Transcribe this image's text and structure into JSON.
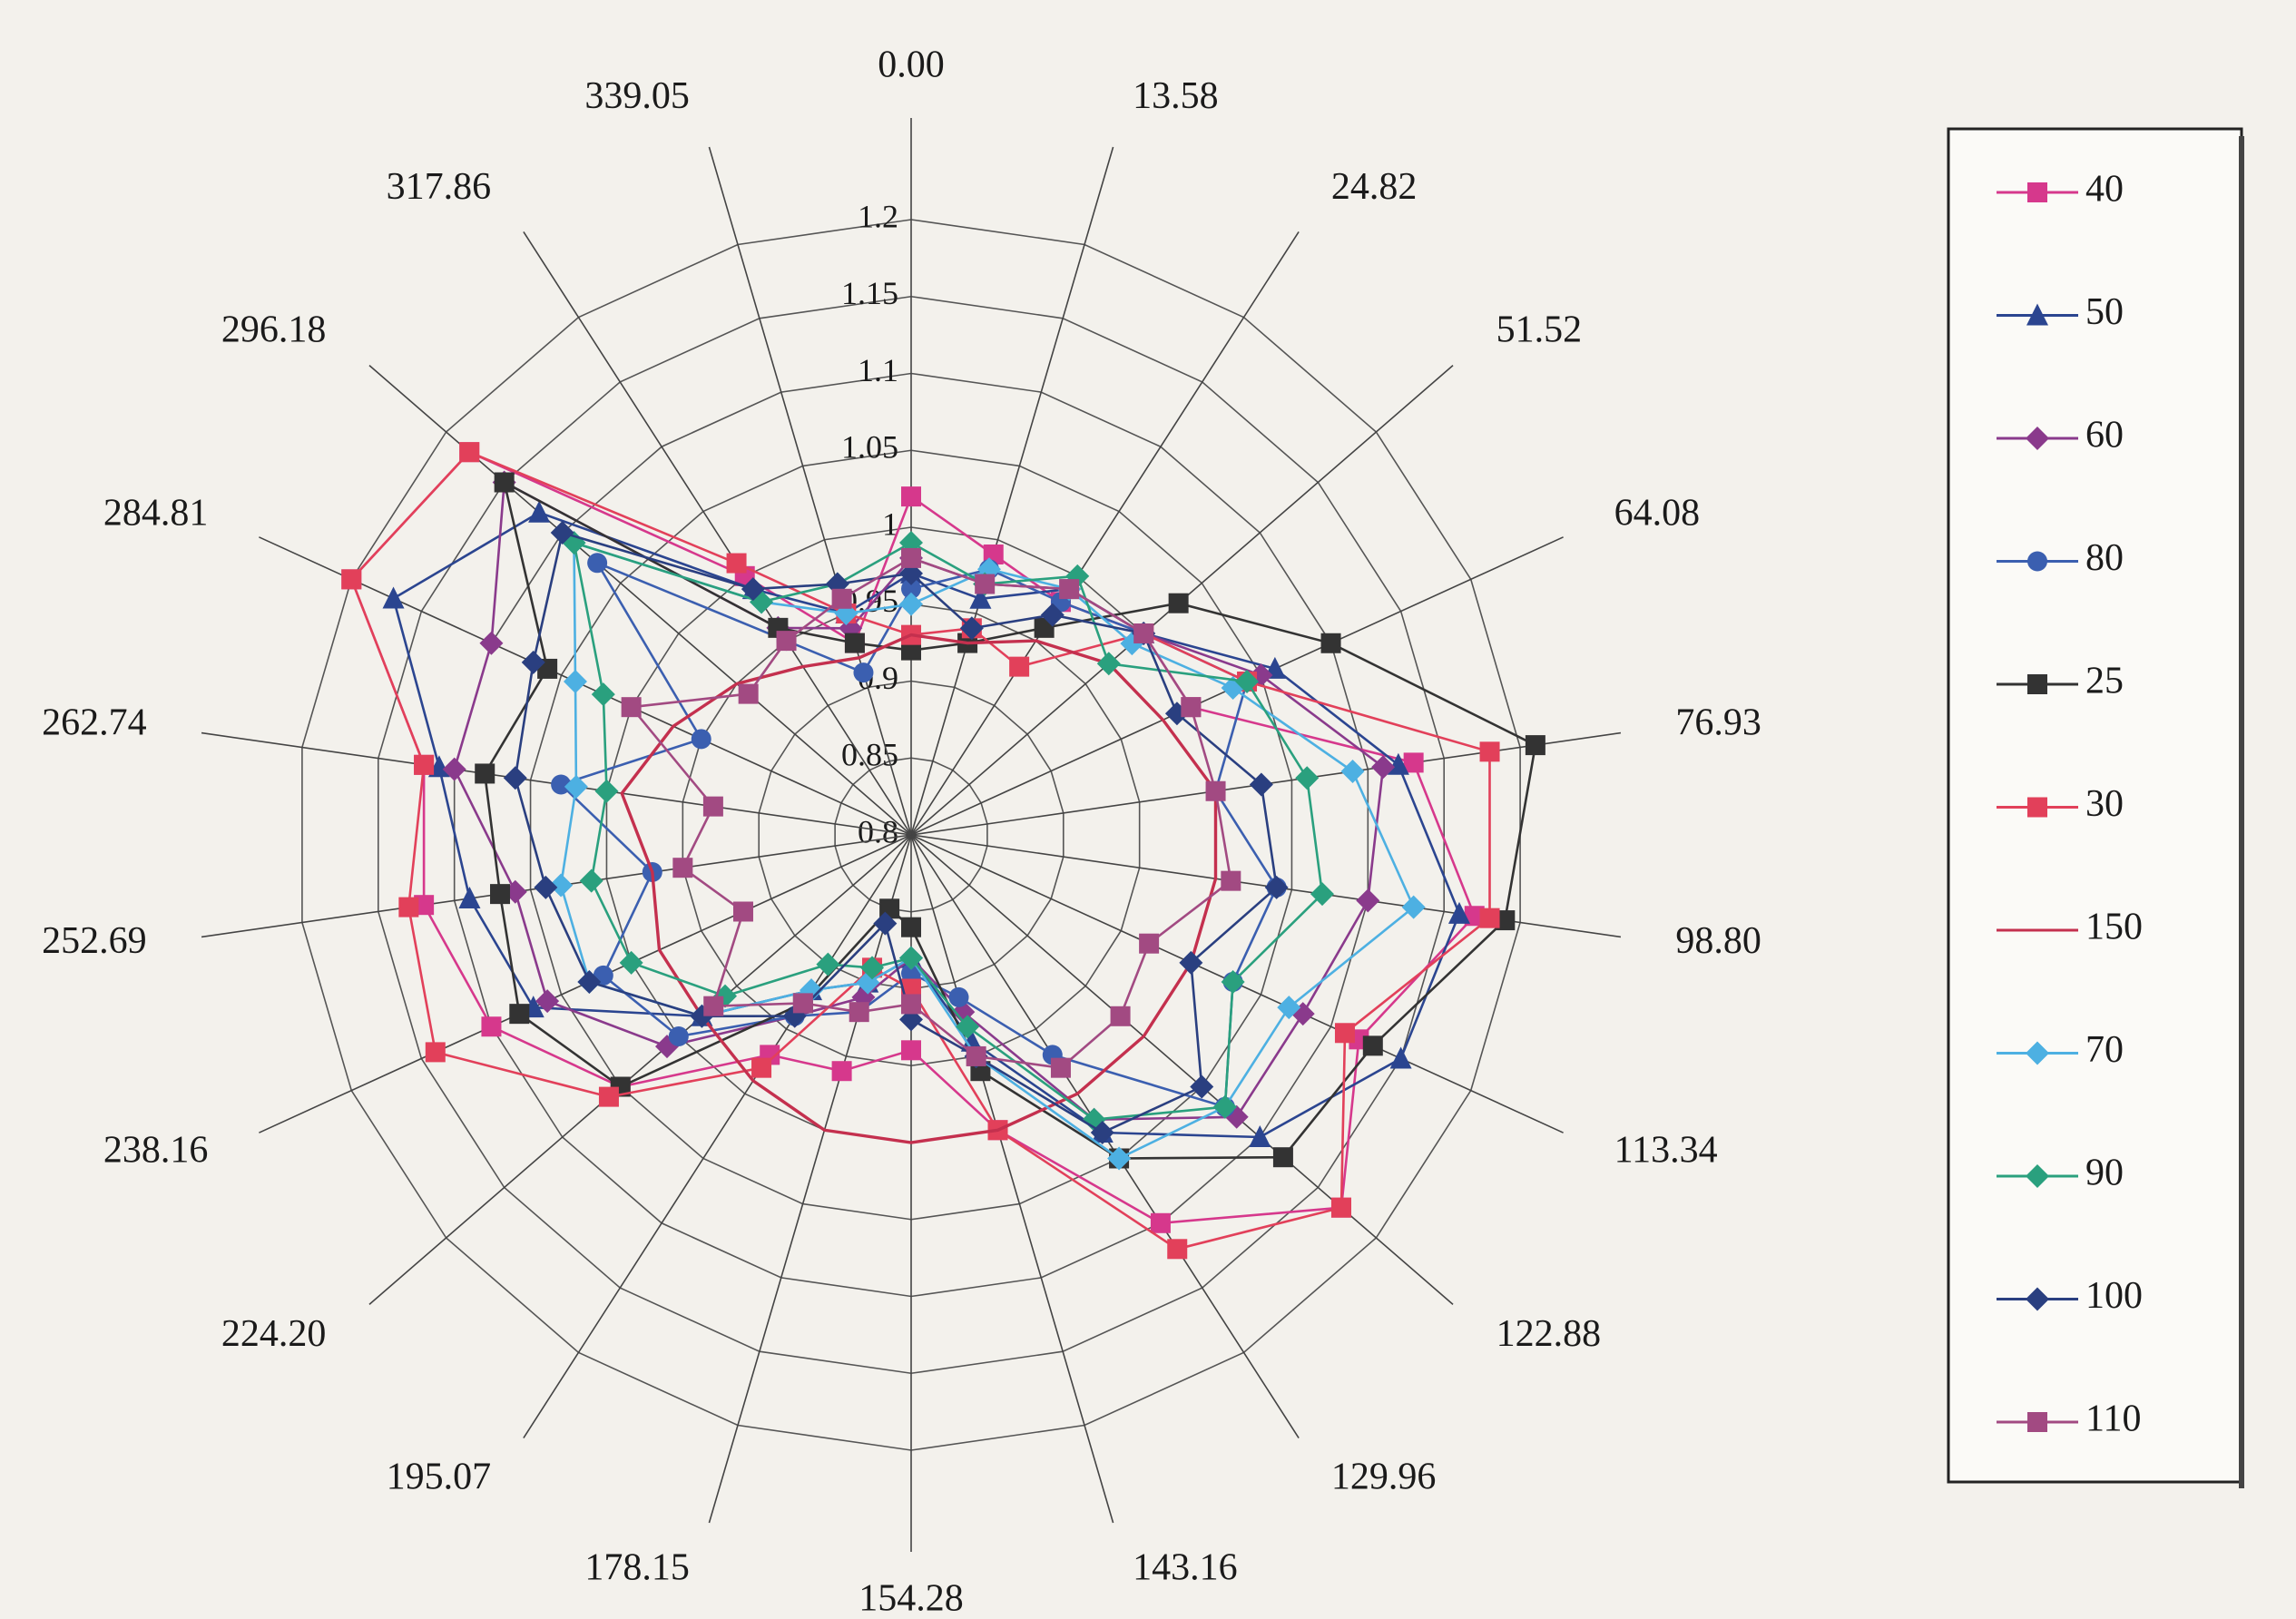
{
  "chart_data": {
    "type": "radar",
    "categories": [
      "0.00",
      "13.58",
      "24.82",
      "51.52",
      "64.08",
      "76.93",
      "98.80",
      "113.34",
      "122.88",
      "129.96",
      "143.16",
      "154.28",
      "178.15",
      "195.07",
      "224.20",
      "238.16",
      "252.69",
      "262.74",
      "284.81",
      "296.18",
      "317.86",
      "339.05"
    ],
    "ylim": [
      0.8,
      1.2
    ],
    "yticks": [
      0.8,
      0.85,
      0.9,
      0.95,
      1,
      1.05,
      1.1,
      1.15,
      1.2
    ],
    "grid": true,
    "legend": "right",
    "series": [
      {
        "name": "40",
        "color": "#d6388c",
        "marker": "square",
        "values": [
          1.02,
          0.99,
          0.98,
          1.0,
          1.0,
          1.13,
          1.17,
          1.12,
          1.17,
          1.1,
          1.0,
          0.94,
          0.96,
          0.97,
          1.05,
          1.1,
          1.12,
          1.12,
          1.2,
          1.18,
          1.0,
          0.93
        ]
      },
      {
        "name": "50",
        "color": "#2b4590",
        "marker": "triangle",
        "values": [
          0.97,
          0.96,
          0.99,
          1.0,
          1.06,
          1.12,
          1.16,
          1.15,
          1.1,
          1.03,
          0.94,
          0.88,
          0.9,
          0.92,
          0.98,
          1.07,
          1.09,
          1.11,
          1.17,
          1.12,
          0.99,
          0.95
        ]
      },
      {
        "name": "60",
        "color": "#8a3a8c",
        "marker": "diamond",
        "values": [
          0.98,
          0.97,
          0.99,
          1.0,
          1.05,
          1.11,
          1.1,
          1.08,
          1.08,
          1.02,
          0.92,
          0.88,
          0.91,
          0.94,
          1.01,
          1.06,
          1.06,
          1.1,
          1.1,
          1.15,
          0.96,
          0.94
        ]
      },
      {
        "name": "80",
        "color": "#3b5fb0",
        "marker": "circle",
        "values": [
          0.96,
          0.98,
          0.98,
          1.0,
          1.04,
          1.0,
          1.04,
          1.03,
          1.07,
          0.97,
          0.91,
          0.89,
          0.92,
          0.94,
          1.0,
          1.02,
          0.97,
          1.03,
          0.95,
          1.07,
          0.95,
          0.91
        ]
      },
      {
        "name": "25",
        "color": "#333333",
        "marker": "square",
        "values": [
          0.92,
          0.93,
          0.96,
          1.03,
          1.1,
          1.21,
          1.19,
          1.13,
          1.12,
          1.05,
          0.96,
          0.86,
          0.85,
          0.93,
          1.05,
          1.08,
          1.07,
          1.08,
          1.06,
          1.15,
          0.96,
          0.93
        ]
      },
      {
        "name": "30",
        "color": "#e2405a",
        "marker": "square",
        "values": [
          0.93,
          0.94,
          0.93,
          1.0,
          1.04,
          1.18,
          1.18,
          1.11,
          1.17,
          1.12,
          1.0,
          0.9,
          0.89,
          0.98,
          1.06,
          1.14,
          1.13,
          1.12,
          1.2,
          1.18,
          1.01,
          0.95
        ]
      },
      {
        "name": "150",
        "color": "#c4304e",
        "marker": null,
        "values": [
          0.93,
          0.93,
          0.95,
          0.97,
          0.98,
          1.0,
          1.0,
          1.0,
          1.0,
          1.0,
          1.0,
          1.0,
          1.0,
          0.99,
          0.98,
          0.98,
          0.97,
          0.99,
          0.97,
          0.95,
          0.93,
          0.92
        ]
      },
      {
        "name": "70",
        "color": "#4db0e2",
        "marker": "diamond",
        "values": [
          0.95,
          0.98,
          0.99,
          0.99,
          1.03,
          1.09,
          1.13,
          1.07,
          1.07,
          1.05,
          0.95,
          0.88,
          0.9,
          0.92,
          0.98,
          1.03,
          1.03,
          1.02,
          1.04,
          1.09,
          0.98,
          0.95
        ]
      },
      {
        "name": "90",
        "color": "#2aa07e",
        "marker": "diamond",
        "values": [
          0.99,
          0.97,
          1.0,
          0.97,
          1.04,
          1.06,
          1.07,
          1.03,
          1.07,
          1.02,
          0.93,
          0.88,
          0.89,
          0.9,
          0.96,
          1.0,
          1.01,
          1.0,
          1.02,
          1.09,
          0.98,
          0.97
        ]
      },
      {
        "name": "100",
        "color": "#2a3f80",
        "marker": "diamond",
        "values": [
          0.97,
          0.94,
          0.97,
          1.0,
          0.99,
          1.03,
          1.04,
          1.0,
          1.05,
          1.03,
          0.95,
          0.92,
          0.86,
          0.94,
          0.98,
          1.03,
          1.04,
          1.06,
          1.07,
          1.1,
          0.99,
          0.97
        ]
      },
      {
        "name": "110",
        "color": "#a24a82",
        "marker": "square",
        "values": [
          0.98,
          0.97,
          0.99,
          1.0,
          1.0,
          1.0,
          1.01,
          0.97,
          0.98,
          0.98,
          0.95,
          0.91,
          0.92,
          0.93,
          0.97,
          0.92,
          0.95,
          0.93,
          1.0,
          0.94,
          0.95,
          0.96
        ]
      }
    ]
  }
}
